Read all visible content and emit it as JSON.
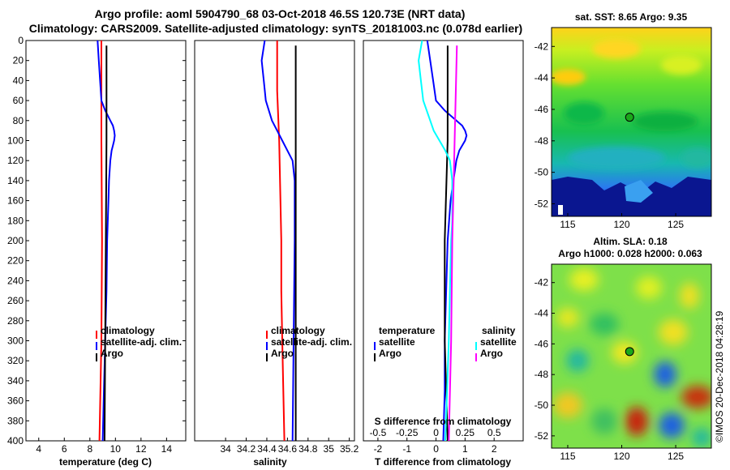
{
  "header": {
    "title_line1": "Argo profile: aoml 5904790_68 03-Oct-2018 46.5S 120.73E (NRT data)",
    "title_line2": "Climatology: CARS2009. Satellite-adjusted climatology: synTS_20181003.nc (0.078d earlier)"
  },
  "watermark": "©IMOS 20-Dec-2018 04:28:19",
  "colors": {
    "climatology": "#ff0000",
    "satellite_adj": "#0000ff",
    "argo": "#000000",
    "cyan": "#00ffff",
    "magenta": "#ff00ff"
  },
  "chart_data": [
    {
      "type": "line",
      "panel": "temperature",
      "xlabel": "temperature (deg C)",
      "ylabel": "",
      "xlim": [
        3,
        15.5
      ],
      "ylim": [
        0,
        400
      ],
      "xticks": [
        "4",
        "6",
        "8",
        "10",
        "12",
        "14"
      ],
      "yticks": [
        "0",
        "20",
        "40",
        "60",
        "80",
        "100",
        "120",
        "140",
        "160",
        "180",
        "200",
        "220",
        "240",
        "260",
        "280",
        "300",
        "320",
        "340",
        "360",
        "380",
        "400"
      ],
      "legend_position": "middle-right",
      "legend": [
        "climatology",
        "satellite-adj. clim.",
        "Argo"
      ],
      "series": [
        {
          "name": "climatology",
          "color": "#ff0000",
          "depth": [
            0,
            100,
            200,
            300,
            400
          ],
          "values": [
            8.9,
            8.9,
            8.95,
            8.9,
            8.75
          ]
        },
        {
          "name": "satellite-adj. clim.",
          "color": "#0000ff",
          "depth": [
            0,
            20,
            40,
            60,
            70,
            75,
            80,
            85,
            90,
            95,
            100,
            105,
            110,
            120,
            140,
            160,
            180,
            200,
            250,
            300,
            350,
            400
          ],
          "values": [
            8.6,
            8.7,
            8.8,
            8.9,
            9.2,
            9.4,
            9.6,
            9.8,
            9.9,
            9.95,
            9.9,
            9.8,
            9.7,
            9.6,
            9.5,
            9.45,
            9.4,
            9.35,
            9.3,
            9.2,
            9.1,
            9.0
          ]
        },
        {
          "name": "Argo",
          "color": "#000000",
          "depth": [
            5,
            100,
            200,
            300,
            400
          ],
          "values": [
            9.3,
            9.3,
            9.25,
            9.2,
            9.15
          ]
        }
      ]
    },
    {
      "type": "line",
      "panel": "salinity",
      "xlabel": "salinity",
      "ylabel": "",
      "xlim": [
        33.7,
        35.25
      ],
      "ylim": [
        0,
        400
      ],
      "xticks": [
        "34",
        "34.2",
        "34.4",
        "34.6",
        "34.8",
        "35",
        "35.2"
      ],
      "legend_position": "middle-right",
      "legend": [
        "climatology",
        "satellite-adj. clim.",
        "Argo"
      ],
      "series": [
        {
          "name": "climatology",
          "color": "#ff0000",
          "depth": [
            0,
            50,
            100,
            150,
            200,
            250,
            300,
            350,
            400
          ],
          "values": [
            34.5,
            34.5,
            34.52,
            34.53,
            34.54,
            34.54,
            34.55,
            34.56,
            34.57
          ]
        },
        {
          "name": "satellite-adj. clim.",
          "color": "#0000ff",
          "depth": [
            0,
            20,
            40,
            60,
            70,
            80,
            90,
            100,
            110,
            120,
            140,
            160,
            200,
            300,
            400
          ],
          "values": [
            34.38,
            34.35,
            34.37,
            34.39,
            34.42,
            34.45,
            34.5,
            34.55,
            34.6,
            34.65,
            34.67,
            34.67,
            34.67,
            34.66,
            34.65
          ]
        },
        {
          "name": "Argo",
          "color": "#000000",
          "depth": [
            5,
            100,
            200,
            300,
            400
          ],
          "values": [
            34.68,
            34.68,
            34.68,
            34.68,
            34.68
          ]
        }
      ]
    },
    {
      "type": "line",
      "panel": "difference",
      "xlabel": "T difference from climatology",
      "xlabel2": "S difference from climatology",
      "xlim": [
        -2.5,
        3
      ],
      "ylim": [
        0,
        400
      ],
      "xticks": [
        "-2",
        "-1",
        "0",
        "1",
        "2"
      ],
      "xticks2": [
        "-0.5",
        "-0.25",
        "0",
        "0.25",
        "0.5"
      ],
      "legend_position": "middle",
      "legend_groups": {
        "temperature": [
          "satellite",
          "Argo"
        ],
        "salinity": [
          "satellite",
          "Argo"
        ]
      },
      "series": [
        {
          "name": "temperature satellite",
          "color": "#0000ff",
          "depth": [
            0,
            20,
            40,
            60,
            70,
            75,
            80,
            85,
            90,
            95,
            100,
            110,
            120,
            140,
            160,
            180,
            200,
            250,
            300,
            350,
            400
          ],
          "values": [
            -0.3,
            -0.2,
            -0.1,
            0.0,
            0.3,
            0.5,
            0.7,
            0.9,
            1.0,
            1.05,
            1.0,
            0.8,
            0.7,
            0.6,
            0.5,
            0.45,
            0.4,
            0.35,
            0.3,
            0.3,
            0.25
          ]
        },
        {
          "name": "temperature Argo",
          "color": "#000000",
          "depth": [
            5,
            100,
            200,
            300,
            400
          ],
          "values": [
            0.4,
            0.4,
            0.3,
            0.3,
            0.4
          ]
        },
        {
          "name": "salinity satellite",
          "color": "#00ffff",
          "depth": [
            0,
            20,
            40,
            60,
            70,
            80,
            90,
            100,
            110,
            120,
            140,
            160,
            180,
            200,
            250,
            300,
            400
          ],
          "values": [
            -0.12,
            -0.15,
            -0.13,
            -0.11,
            -0.08,
            -0.05,
            -0.02,
            0.03,
            0.08,
            0.12,
            0.14,
            0.14,
            0.14,
            0.13,
            0.12,
            0.11,
            0.08
          ]
        },
        {
          "name": "salinity Argo",
          "color": "#ff00ff",
          "depth": [
            5,
            100,
            200,
            300,
            400
          ],
          "values": [
            0.18,
            0.16,
            0.14,
            0.13,
            0.11
          ]
        }
      ]
    },
    {
      "type": "heatmap",
      "panel": "sst_map",
      "title": "sat. SST: 8.65 Argo: 9.35",
      "xticks": [
        "115",
        "120",
        "125"
      ],
      "yticks": [
        "-42",
        "-44",
        "-46",
        "-48",
        "-50",
        "-52"
      ],
      "xlim": [
        113.5,
        128.3
      ],
      "ylim": [
        -52.8,
        -40.8
      ],
      "marker": {
        "lon": 120.73,
        "lat": -46.5
      }
    },
    {
      "type": "heatmap",
      "panel": "sla_map",
      "title_line1": "Altim. SLA: 0.18",
      "title_line2": "Argo h1000: 0.028 h2000: 0.063",
      "xticks": [
        "115",
        "120",
        "125"
      ],
      "yticks": [
        "-42",
        "-44",
        "-46",
        "-48",
        "-50",
        "-52"
      ],
      "xlim": [
        113.5,
        128.3
      ],
      "ylim": [
        -52.8,
        -40.8
      ],
      "marker": {
        "lon": 120.73,
        "lat": -46.5
      }
    }
  ]
}
